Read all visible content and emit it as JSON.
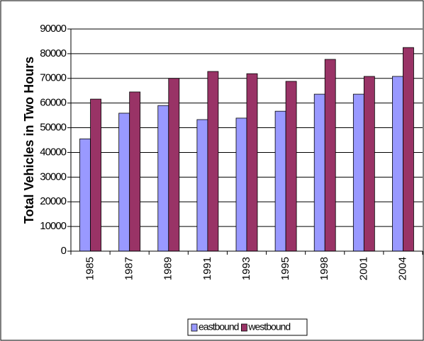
{
  "chart_data": {
    "type": "bar",
    "y_label": "Total Vehicles in Two Hours",
    "categories": [
      "1985",
      "1987",
      "1989",
      "1991",
      "1993",
      "1995",
      "1998",
      "2001",
      "2004"
    ],
    "series": [
      {
        "name": "eastbound",
        "color": "#9999ff",
        "values": [
          45500,
          55900,
          59000,
          53300,
          53900,
          56700,
          63600,
          63600,
          70800
        ]
      },
      {
        "name": "westbound",
        "color": "#993366",
        "values": [
          61600,
          64500,
          70000,
          72800,
          71900,
          68800,
          77700,
          70800,
          82500
        ]
      }
    ],
    "ylim": [
      0,
      90000
    ],
    "yticks": [
      0,
      10000,
      20000,
      30000,
      40000,
      50000,
      60000,
      70000,
      80000,
      90000
    ],
    "grid": true,
    "legend": "bottom"
  }
}
